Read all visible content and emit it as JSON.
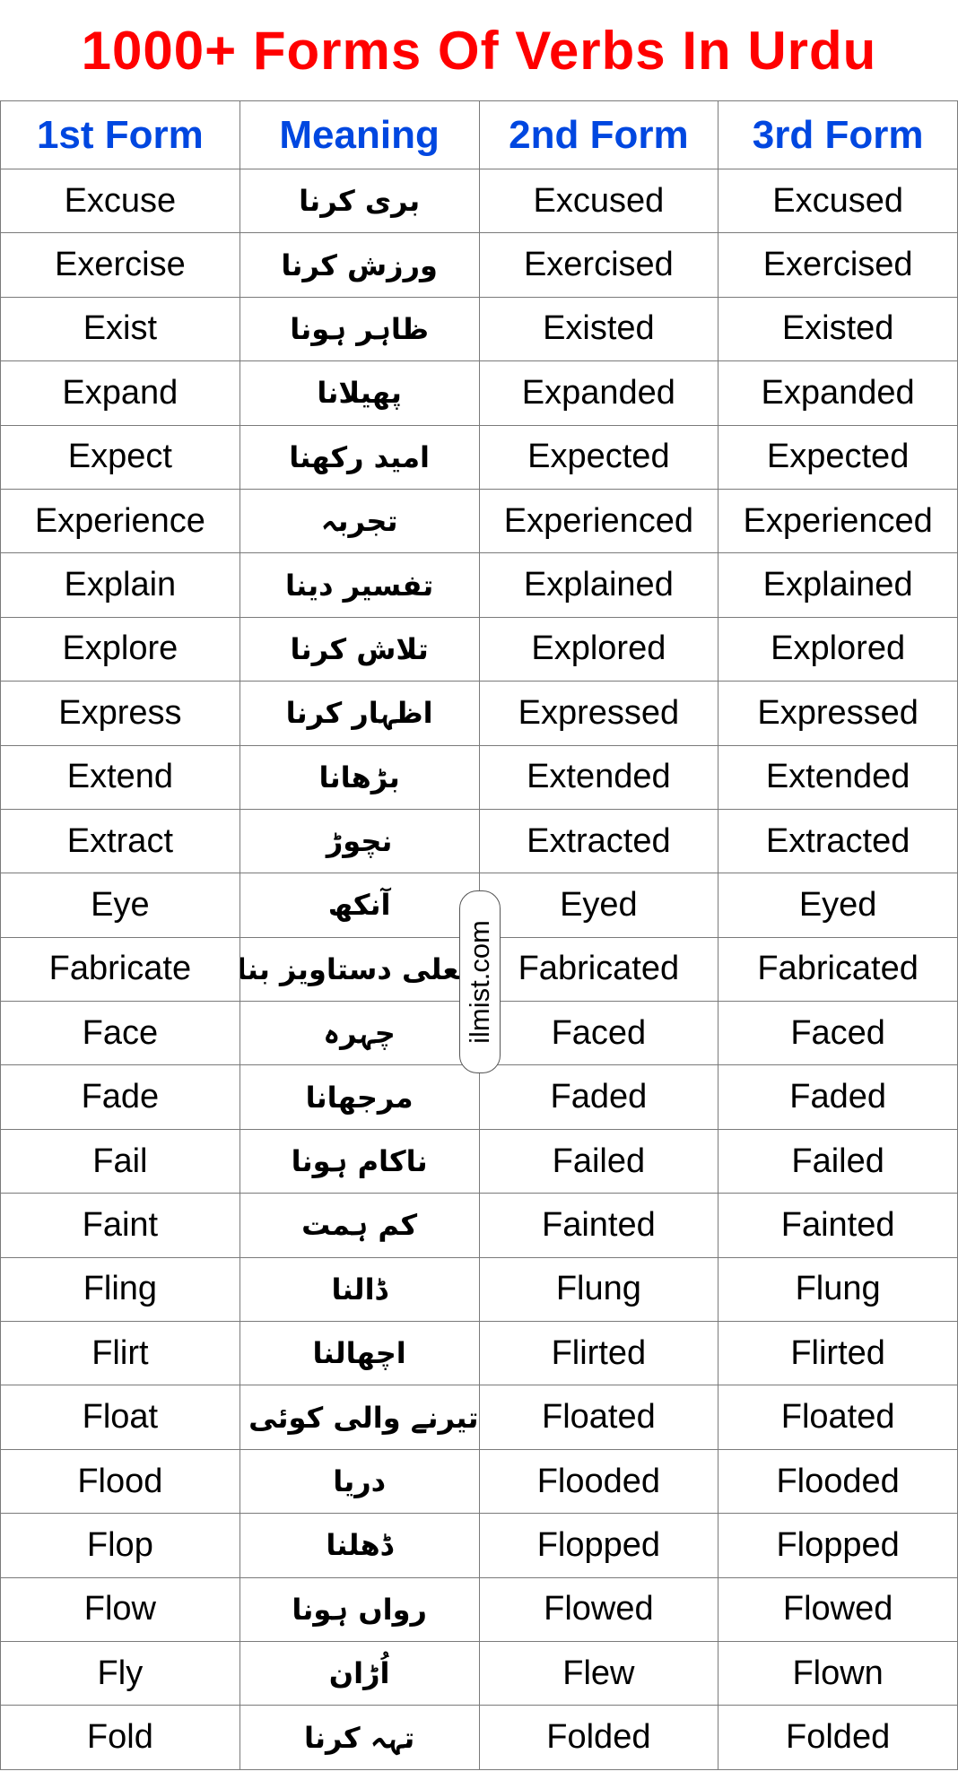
{
  "title": "1000+ Forms Of Verbs In Urdu",
  "colors": {
    "title": "#ff0000",
    "header": "#0047e0",
    "border": "#7a7a7a"
  },
  "headers": [
    "1st  Form",
    "Meaning",
    "2nd Form",
    "3rd Form"
  ],
  "watermark": "ilmist.com",
  "rows": [
    [
      "Excuse",
      "بری کرنا",
      "Excused",
      "Excused"
    ],
    [
      "Exercise",
      "ورزش کرنا",
      "Exercised",
      "Exercised"
    ],
    [
      "Exist",
      "ظاہر ہونا",
      "Existed",
      "Existed"
    ],
    [
      "Expand",
      "پھیلانا",
      "Expanded",
      "Expanded"
    ],
    [
      "Expect",
      "امید رکھنا",
      "Expected",
      "Expected"
    ],
    [
      "Experience",
      "تجربہ",
      "Experienced",
      "Experienced"
    ],
    [
      "Explain",
      "تفسیر دینا",
      "Explained",
      "Explained"
    ],
    [
      "Explore",
      "تلاش کرنا",
      "Explored",
      "Explored"
    ],
    [
      "Express",
      "اظہار کرنا",
      "Expressed",
      "Expressed"
    ],
    [
      "Extend",
      "بڑھانا",
      "Extended",
      "Extended"
    ],
    [
      "Extract",
      "نچوڑ",
      "Extracted",
      "Extracted"
    ],
    [
      "Eye",
      "آنکھ",
      "Eyed",
      "Eyed"
    ],
    [
      "Fabricate",
      "جعلی دستاویز بنانا",
      "Fabricated",
      "Fabricated"
    ],
    [
      "Face",
      "چہرہ",
      "Faced",
      "Faced"
    ],
    [
      "Fade",
      "مرجھانا",
      "Faded",
      "Faded"
    ],
    [
      "Fail",
      "ناکام ہونا",
      "Failed",
      "Failed"
    ],
    [
      "Faint",
      "کم ہمت",
      "Fainted",
      "Fainted"
    ],
    [
      "Fling",
      "ڈالنا",
      "Flung",
      "Flung"
    ],
    [
      "Flirt",
      "اچھالنا",
      "Flirted",
      "Flirted"
    ],
    [
      "Float",
      "تیرنے والی کوئی شے",
      "Floated",
      "Floated"
    ],
    [
      "Flood",
      "دریا",
      "Flooded",
      "Flooded"
    ],
    [
      "Flop",
      "ڈھلنا",
      "Flopped",
      "Flopped"
    ],
    [
      "Flow",
      "رواں ہونا",
      "Flowed",
      "Flowed"
    ],
    [
      "Fly",
      "اُڑان",
      "Flew",
      "Flown"
    ],
    [
      "Fold",
      "تہہ کرنا",
      "Folded",
      "Folded"
    ]
  ]
}
